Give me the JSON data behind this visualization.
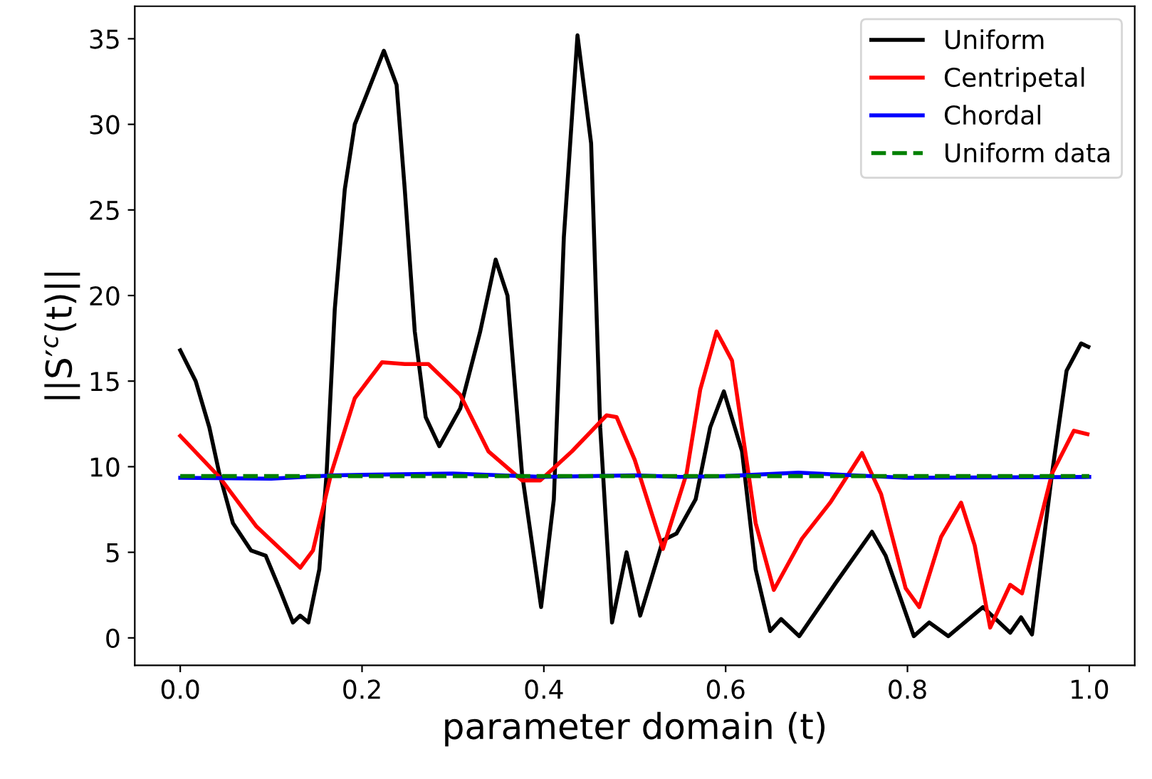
{
  "chart_data": {
    "type": "line",
    "xlabel": "parameter domain (t)",
    "ylabel": "||S′$^{c}$(t)||",
    "xlim": [
      -0.05,
      1.05
    ],
    "ylim": [
      -1.6,
      36.9
    ],
    "xticks": [
      {
        "value": 0,
        "label": "0.0"
      },
      {
        "value": 0.2,
        "label": "0.2"
      },
      {
        "value": 0.4,
        "label": "0.4"
      },
      {
        "value": 0.6,
        "label": "0.6"
      },
      {
        "value": 0.8,
        "label": "0.8"
      },
      {
        "value": 1,
        "label": "1.0"
      }
    ],
    "yticks": [
      0,
      5,
      10,
      15,
      20,
      25,
      30,
      35
    ],
    "grid": false,
    "legend": "top right",
    "series": [
      {
        "name": "Uniform",
        "color": "#000000",
        "line_style": "solid",
        "x": [
          0,
          0.017,
          0.032,
          0.043,
          0.058,
          0.078,
          0.094,
          0.109,
          0.124,
          0.132,
          0.141,
          0.153,
          0.161,
          0.17,
          0.181,
          0.192,
          0.207,
          0.224,
          0.238,
          0.247,
          0.258,
          0.27,
          0.285,
          0.308,
          0.33,
          0.347,
          0.36,
          0.376,
          0.397,
          0.411,
          0.422,
          0.437,
          0.452,
          0.462,
          0.475,
          0.491,
          0.506,
          0.531,
          0.546,
          0.567,
          0.583,
          0.598,
          0.618,
          0.633,
          0.649,
          0.661,
          0.681,
          0.721,
          0.761,
          0.776,
          0.807,
          0.824,
          0.845,
          0.883,
          0.913,
          0.925,
          0.937,
          0.959,
          0.975,
          0.991,
          0.999
        ],
        "values": [
          16.8,
          15.0,
          12.3,
          9.6,
          6.7,
          5.1,
          4.8,
          2.9,
          0.9,
          1.3,
          0.9,
          4.0,
          9.6,
          19.2,
          26.2,
          30.0,
          32.0,
          34.3,
          32.3,
          26.2,
          17.9,
          12.9,
          11.2,
          13.4,
          17.9,
          22.1,
          20.0,
          9.6,
          1.8,
          8.1,
          23.4,
          35.2,
          28.9,
          12.3,
          0.9,
          5.0,
          1.3,
          5.7,
          6.1,
          8.1,
          12.3,
          14.4,
          10.9,
          4.0,
          0.4,
          1.1,
          0.1,
          3.2,
          6.2,
          4.8,
          0.1,
          0.9,
          0.1,
          1.8,
          0.3,
          1.2,
          0.2,
          9.6,
          15.6,
          17.2,
          17.0
        ]
      },
      {
        "name": "Centripetal",
        "color": "#ff0000",
        "line_style": "solid",
        "x": [
          0,
          0.043,
          0.084,
          0.132,
          0.146,
          0.166,
          0.192,
          0.222,
          0.247,
          0.273,
          0.308,
          0.339,
          0.376,
          0.396,
          0.431,
          0.469,
          0.48,
          0.5,
          0.531,
          0.557,
          0.572,
          0.59,
          0.607,
          0.633,
          0.653,
          0.684,
          0.715,
          0.75,
          0.771,
          0.798,
          0.813,
          0.837,
          0.859,
          0.874,
          0.891,
          0.913,
          0.926,
          0.959,
          0.983,
          0.998
        ],
        "values": [
          11.8,
          9.4,
          6.5,
          4.1,
          5.1,
          9.6,
          14.0,
          16.1,
          16.0,
          16.0,
          14.2,
          10.9,
          9.2,
          9.2,
          10.9,
          13.0,
          12.9,
          10.4,
          5.2,
          9.6,
          14.5,
          17.9,
          16.2,
          6.7,
          2.8,
          5.8,
          7.9,
          10.8,
          8.4,
          2.9,
          1.8,
          5.9,
          7.9,
          5.4,
          0.6,
          3.1,
          2.6,
          9.6,
          12.1,
          11.9
        ]
      },
      {
        "name": "Chordal",
        "color": "#0000ff",
        "line_style": "solid",
        "x": [
          0,
          0.1,
          0.17,
          0.3,
          0.4,
          0.5,
          0.55,
          0.6,
          0.68,
          0.72,
          0.8,
          1.0
        ],
        "values": [
          9.35,
          9.3,
          9.5,
          9.6,
          9.4,
          9.5,
          9.4,
          9.45,
          9.65,
          9.55,
          9.35,
          9.4
        ]
      },
      {
        "name": "Uniform data",
        "color": "#008000",
        "line_style": "dashed",
        "x": [
          0,
          1.0
        ],
        "values": [
          9.45,
          9.45
        ]
      }
    ]
  }
}
